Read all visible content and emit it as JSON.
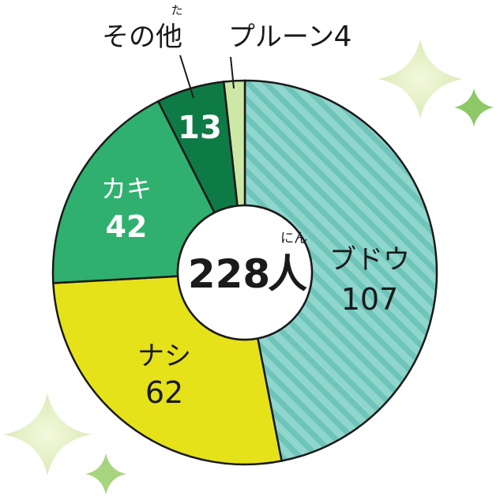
{
  "chart_data": {
    "type": "pie",
    "title": "",
    "total": {
      "value": "228",
      "unit": "人",
      "ruby": "にん"
    },
    "slices": [
      {
        "label": "ブドウ",
        "value": 107,
        "color": "#8fd6cc",
        "stripe": "#6fc4ba"
      },
      {
        "label": "ナシ",
        "value": 62,
        "color": "#e6e21a"
      },
      {
        "label": "カキ",
        "value": 42,
        "color": "#2fb06e"
      },
      {
        "label": "その他",
        "value": 13,
        "color": "#0e7a45",
        "ruby": "た"
      },
      {
        "label": "プルーン",
        "value": 4,
        "color": "#cde8a6"
      }
    ]
  }
}
